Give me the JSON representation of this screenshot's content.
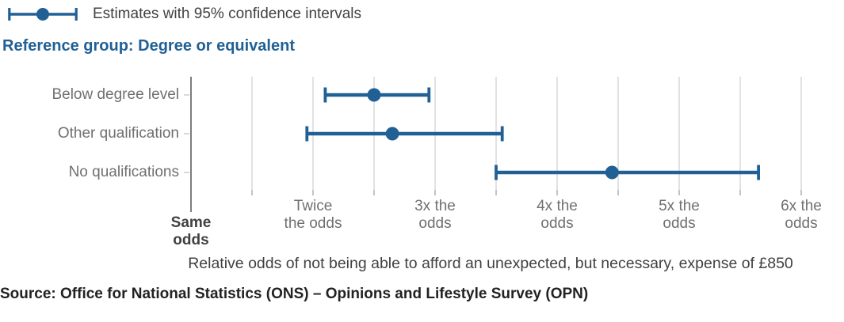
{
  "legend": {
    "label": "Estimates with 95% confidence intervals"
  },
  "subtitle": "Reference group: Degree or equivalent",
  "source": "Source: Office for National Statistics (ONS) – Opinions and Lifestyle Survey (OPN)",
  "colors": {
    "accent_blue": "#206095",
    "gridline": "#d9d9d9",
    "axis": "#7d7d7d",
    "text_dark": "#414042",
    "text_gray": "#707071",
    "source_text": "#222222"
  },
  "chart_data": {
    "type": "scatter",
    "subtype": "dot-plot-with-95pct-confidence-intervals",
    "title": "",
    "categories": [
      "Below degree level",
      "Other qualification",
      "No qualifications"
    ],
    "series": [
      {
        "name": "Estimates with 95% confidence intervals",
        "estimates": [
          2.5,
          2.65,
          4.45
        ],
        "ci_low": [
          2.1,
          1.95,
          3.5
        ],
        "ci_high": [
          2.95,
          3.55,
          5.65
        ]
      }
    ],
    "xlabel": "Relative odds of not being able to afford an unexpected, but necessary, expense of £850",
    "ylabel": "",
    "xlim": [
      1,
      6.3
    ],
    "x_ticks": [
      {
        "value": 1,
        "label": "Same\nodds",
        "bold": true
      },
      {
        "value": 2,
        "label": "Twice\nthe odds",
        "bold": false
      },
      {
        "value": 3,
        "label": "3x the\nodds",
        "bold": false
      },
      {
        "value": 4,
        "label": "4x the\nodds",
        "bold": false
      },
      {
        "value": 5,
        "label": "5x the\nodds",
        "bold": false
      },
      {
        "value": 6,
        "label": "6x the\nodds",
        "bold": false
      }
    ],
    "grid": {
      "from": 1.5,
      "to": 6,
      "step": 0.5,
      "orientation": "vertical"
    },
    "reference_line_value": 1,
    "legend_position": "top-left"
  }
}
